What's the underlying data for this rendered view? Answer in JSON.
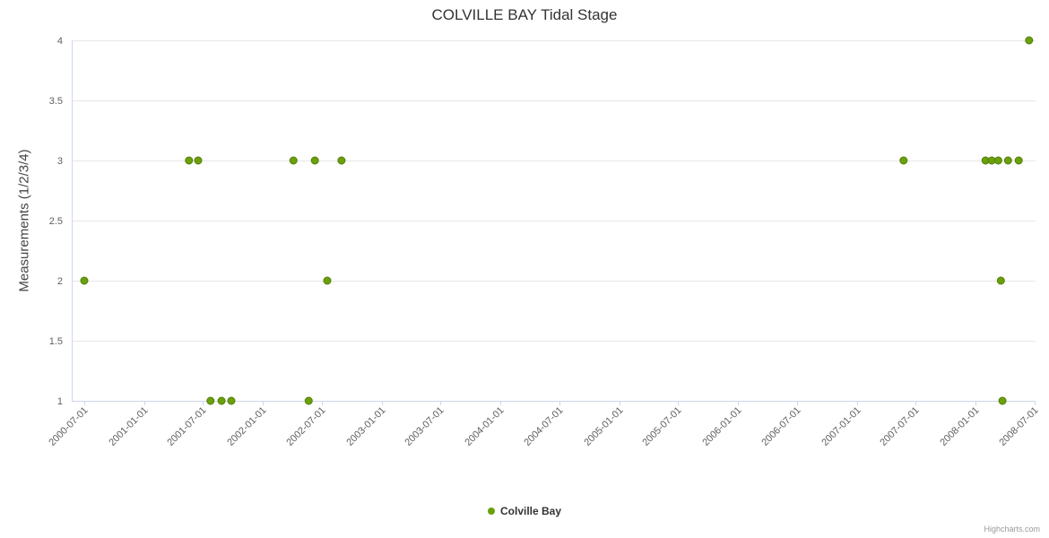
{
  "chart_data": {
    "type": "scatter",
    "title": "COLVILLE BAY Tidal Stage",
    "xlabel": "",
    "ylabel": "Measurements (1/2/3/4)",
    "ylim": [
      1,
      4
    ],
    "y_ticks": [
      1,
      1.5,
      2,
      2.5,
      3,
      3.5,
      4
    ],
    "x_ticks": [
      "2000-07-01",
      "2001-01-01",
      "2001-07-01",
      "2002-01-01",
      "2002-07-01",
      "2003-01-01",
      "2003-07-01",
      "2004-01-01",
      "2004-07-01",
      "2005-01-01",
      "2005-07-01",
      "2006-01-01",
      "2006-07-01",
      "2007-01-01",
      "2007-07-01",
      "2008-01-01",
      "2008-07-01"
    ],
    "grid": "horizontal",
    "legend_position": "bottom-center",
    "series": [
      {
        "name": "Colville Bay",
        "color": "#6aa10b",
        "stroke": "#527d08",
        "points": [
          [
            "2000-07-01",
            2
          ],
          [
            "2001-05-19",
            3
          ],
          [
            "2001-06-16",
            3
          ],
          [
            "2001-07-24",
            1
          ],
          [
            "2001-08-27",
            1
          ],
          [
            "2001-09-26",
            1
          ],
          [
            "2002-04-05",
            3
          ],
          [
            "2002-05-22",
            1
          ],
          [
            "2002-06-10",
            3
          ],
          [
            "2002-07-18",
            2
          ],
          [
            "2002-08-31",
            3
          ],
          [
            "2007-05-25",
            3
          ],
          [
            "2008-02-01",
            3
          ],
          [
            "2008-02-20",
            3
          ],
          [
            "2008-03-11",
            3
          ],
          [
            "2008-03-19",
            2
          ],
          [
            "2008-03-24",
            1
          ],
          [
            "2008-04-10",
            3
          ],
          [
            "2008-05-13",
            3
          ],
          [
            "2008-06-14",
            4
          ]
        ]
      }
    ]
  },
  "credits": "Highcharts.com",
  "colors": {
    "grid": "#e6e6e6",
    "axis": "#ccd6eb",
    "tick_label": "#606060"
  }
}
